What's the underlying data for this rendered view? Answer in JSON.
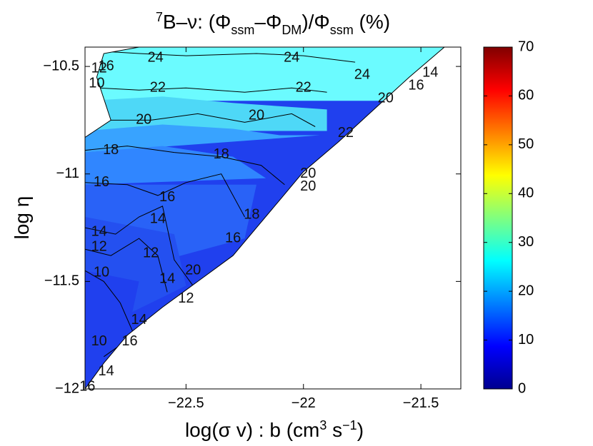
{
  "chart_data": {
    "type": "contour",
    "title": {
      "sup": "7",
      "main": "B–ν: (Φ",
      "sub1": "ssm",
      "mid1": "–Φ",
      "sub2": "DM",
      "mid2": ")/Φ",
      "sub3": "ssm",
      "end": " (%)"
    },
    "xlabel": {
      "pre": "log(σ v) : b (cm",
      "sup1": "3",
      "mid": " s",
      "sup2": "−1",
      "post": ")"
    },
    "ylabel": "log η",
    "xlim": [
      -22.93,
      -21.33
    ],
    "ylim": [
      -12.0,
      -10.41
    ],
    "xticks": [
      -22.5,
      -22,
      -21.5
    ],
    "xtick_labels": [
      "−22.5",
      "−22",
      "−21.5"
    ],
    "yticks": [
      -10.5,
      -11,
      -11.5,
      -12
    ],
    "ytick_labels": [
      "−10.5",
      "−11",
      "−11.5",
      "−12"
    ],
    "colorbar": {
      "min": 0,
      "max": 70,
      "ticks": [
        0,
        10,
        20,
        30,
        40,
        50,
        60,
        70
      ],
      "tick_labels": [
        "0",
        "10",
        "20",
        "30",
        "40",
        "50",
        "60",
        "70"
      ],
      "colormap": "jet"
    },
    "region_boundary": [
      [
        -22.93,
        -10.83
      ],
      [
        -22.82,
        -10.75
      ],
      [
        -22.88,
        -10.55
      ],
      [
        -22.85,
        -10.44
      ],
      [
        -22.7,
        -10.41
      ],
      [
        -21.4,
        -10.41
      ],
      [
        -21.55,
        -10.55
      ],
      [
        -21.72,
        -10.72
      ],
      [
        -21.85,
        -10.85
      ],
      [
        -22.0,
        -10.99
      ],
      [
        -22.1,
        -11.12
      ],
      [
        -22.2,
        -11.25
      ],
      [
        -22.3,
        -11.38
      ],
      [
        -22.45,
        -11.5
      ],
      [
        -22.6,
        -11.62
      ],
      [
        -22.75,
        -11.75
      ],
      [
        -22.85,
        -11.88
      ],
      [
        -22.93,
        -12.0
      ]
    ],
    "contour_bands": [
      {
        "level": "22-24",
        "value": 23,
        "color": "#6bfbff",
        "boundary": [
          [
            -22.93,
            -10.4
          ],
          [
            -21.33,
            -10.4
          ],
          [
            -21.33,
            -10.66
          ],
          [
            -22.93,
            -10.66
          ]
        ]
      },
      {
        "level": "20-22",
        "value": 21,
        "color": "#4ed8f7",
        "boundary": [
          [
            -22.93,
            -10.66
          ],
          [
            -22.6,
            -10.64
          ],
          [
            -22.3,
            -10.67
          ],
          [
            -21.9,
            -10.7
          ],
          [
            -21.9,
            -10.8
          ],
          [
            -22.93,
            -10.8
          ]
        ]
      },
      {
        "level": "18-20",
        "value": 19,
        "color": "#38a3ff",
        "boundary": [
          [
            -22.93,
            -10.8
          ],
          [
            -22.6,
            -10.77
          ],
          [
            -22.3,
            -10.79
          ],
          [
            -22.1,
            -10.82
          ],
          [
            -21.93,
            -10.82
          ],
          [
            -22.93,
            -10.9
          ]
        ]
      },
      {
        "level": "16-18",
        "value": 17,
        "color": "#3086ff",
        "boundary": [
          [
            -22.93,
            -10.9
          ],
          [
            -22.6,
            -10.87
          ],
          [
            -22.3,
            -10.92
          ],
          [
            -22.16,
            -11.02
          ],
          [
            -22.93,
            -11.05
          ]
        ]
      },
      {
        "level": "14-16",
        "value": 15,
        "color": "#2962f7",
        "boundary": [
          [
            -22.93,
            -11.05
          ],
          [
            -22.2,
            -11.05
          ],
          [
            -22.25,
            -11.3
          ],
          [
            -22.93,
            -11.5
          ]
        ]
      },
      {
        "level": "12-14",
        "value": 13,
        "color": "#2450f0",
        "boundary": [
          [
            -22.93,
            -11.2
          ],
          [
            -22.55,
            -11.28
          ],
          [
            -22.5,
            -11.52
          ],
          [
            -22.93,
            -11.75
          ]
        ]
      },
      {
        "level": "10-12",
        "value": 11,
        "color": "#2040ee",
        "boundary": [
          [
            -22.93,
            -11.45
          ],
          [
            -22.7,
            -11.5
          ],
          [
            -22.75,
            -11.75
          ],
          [
            -22.93,
            -12.0
          ]
        ]
      }
    ],
    "contour_lines": [
      {
        "level": 24,
        "points": [
          [
            -22.85,
            -10.43
          ],
          [
            -22.7,
            -10.44
          ],
          [
            -22.5,
            -10.45
          ],
          [
            -22.2,
            -10.44
          ],
          [
            -22.0,
            -10.45
          ],
          [
            -21.78,
            -10.48
          ]
        ]
      },
      {
        "level": 22,
        "points": [
          [
            -22.87,
            -10.6
          ],
          [
            -22.7,
            -10.61
          ],
          [
            -22.5,
            -10.6
          ],
          [
            -22.25,
            -10.62
          ],
          [
            -22.05,
            -10.6
          ],
          [
            -21.9,
            -10.62
          ]
        ]
      },
      {
        "level": 20,
        "points": [
          [
            -22.82,
            -10.75
          ],
          [
            -22.65,
            -10.75
          ],
          [
            -22.45,
            -10.72
          ],
          [
            -22.25,
            -10.76
          ],
          [
            -22.05,
            -10.72
          ],
          [
            -21.95,
            -10.78
          ]
        ]
      },
      {
        "level": 18,
        "points": [
          [
            -22.93,
            -10.89
          ],
          [
            -22.75,
            -10.87
          ],
          [
            -22.55,
            -10.9
          ],
          [
            -22.35,
            -10.92
          ],
          [
            -22.18,
            -10.96
          ],
          [
            -22.08,
            -11.05
          ]
        ]
      },
      {
        "level": 16,
        "points": [
          [
            -22.93,
            -11.04
          ],
          [
            -22.75,
            -11.05
          ],
          [
            -22.62,
            -11.1
          ],
          [
            -22.5,
            -11.04
          ],
          [
            -22.35,
            -11.0
          ],
          [
            -22.25,
            -11.2
          ]
        ]
      },
      {
        "level": 14,
        "points": [
          [
            -22.93,
            -11.25
          ],
          [
            -22.8,
            -11.28
          ],
          [
            -22.7,
            -11.2
          ],
          [
            -22.6,
            -11.15
          ],
          [
            -22.55,
            -11.4
          ],
          [
            -22.45,
            -11.55
          ]
        ]
      },
      {
        "level": 12,
        "points": [
          [
            -22.93,
            -11.35
          ],
          [
            -22.82,
            -11.38
          ],
          [
            -22.7,
            -11.3
          ],
          [
            -22.62,
            -11.38
          ],
          [
            -22.58,
            -11.55
          ]
        ]
      },
      {
        "level": 10,
        "points": [
          [
            -22.93,
            -11.45
          ],
          [
            -22.85,
            -11.5
          ],
          [
            -22.78,
            -11.6
          ],
          [
            -22.72,
            -11.75
          ],
          [
            -22.85,
            -11.85
          ]
        ]
      }
    ],
    "contour_labels": [
      {
        "text": "24",
        "x": -22.63,
        "y": -10.46
      },
      {
        "text": "24",
        "x": -22.05,
        "y": -10.46
      },
      {
        "text": "24",
        "x": -21.75,
        "y": -10.54
      },
      {
        "text": "22",
        "x": -22.62,
        "y": -10.6
      },
      {
        "text": "22",
        "x": -22.0,
        "y": -10.6
      },
      {
        "text": "22",
        "x": -21.82,
        "y": -10.81
      },
      {
        "text": "20",
        "x": -22.68,
        "y": -10.75
      },
      {
        "text": "20",
        "x": -22.2,
        "y": -10.73
      },
      {
        "text": "18",
        "x": -22.82,
        "y": -10.89
      },
      {
        "text": "18",
        "x": -22.35,
        "y": -10.91
      },
      {
        "text": "16",
        "x": -22.86,
        "y": -11.04
      },
      {
        "text": "16",
        "x": -22.58,
        "y": -11.11
      },
      {
        "text": "16",
        "x": -22.3,
        "y": -11.3
      },
      {
        "text": "14",
        "x": -22.87,
        "y": -11.27
      },
      {
        "text": "14",
        "x": -22.62,
        "y": -11.21
      },
      {
        "text": "14",
        "x": -22.58,
        "y": -11.49
      },
      {
        "text": "12",
        "x": -22.87,
        "y": -11.34
      },
      {
        "text": "12",
        "x": -22.65,
        "y": -11.37
      },
      {
        "text": "12",
        "x": -22.5,
        "y": -11.58
      },
      {
        "text": "10",
        "x": -22.86,
        "y": -11.46
      },
      {
        "text": "10",
        "x": -22.87,
        "y": -11.78
      },
      {
        "text": "12",
        "x": -22.87,
        "y": -10.51
      },
      {
        "text": "10",
        "x": -22.88,
        "y": -10.58
      },
      {
        "text": "16",
        "x": -22.84,
        "y": -10.5
      },
      {
        "text": "20",
        "x": -21.98,
        "y": -11.0
      },
      {
        "text": "20",
        "x": -21.98,
        "y": -11.06
      },
      {
        "text": "18",
        "x": -22.22,
        "y": -11.19
      },
      {
        "text": "20",
        "x": -21.65,
        "y": -10.65
      },
      {
        "text": "16",
        "x": -21.52,
        "y": -10.59
      },
      {
        "text": "14",
        "x": -21.46,
        "y": -10.53
      },
      {
        "text": "20",
        "x": -22.47,
        "y": -11.45
      },
      {
        "text": "14",
        "x": -22.7,
        "y": -11.68
      },
      {
        "text": "16",
        "x": -22.74,
        "y": -11.78
      },
      {
        "text": "14",
        "x": -22.84,
        "y": -11.92
      },
      {
        "text": "16",
        "x": -22.92,
        "y": -11.99
      }
    ]
  }
}
